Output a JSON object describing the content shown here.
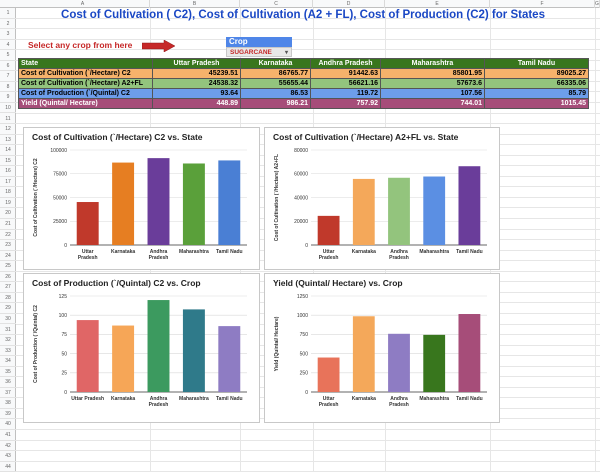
{
  "sheet": {
    "columns": [
      "A",
      "B",
      "C",
      "D",
      "E",
      "F",
      "G"
    ],
    "rows": [
      "1",
      "2",
      "3",
      "4",
      "5",
      "6",
      "7",
      "8",
      "9",
      "10",
      "11",
      "12",
      "13",
      "14",
      "15",
      "16",
      "17",
      "18",
      "19",
      "20",
      "21",
      "22",
      "23",
      "24",
      "25",
      "26",
      "27",
      "28",
      "29",
      "30",
      "31",
      "32",
      "33",
      "34",
      "35",
      "36",
      "37",
      "38",
      "39",
      "40",
      "41",
      "42",
      "43",
      "44"
    ]
  },
  "title": "Cost of Cultivation ( C2), Cost of Cultivation (A2 + FL), Cost of Production (C2) for States",
  "selector": {
    "hint": "Select any crop from here",
    "label": "Crop",
    "value": "SUGARCANE",
    "accent_color": "#c62828"
  },
  "table": {
    "header": [
      "State",
      "Uttar Pradesh",
      "Karnataka",
      "Andhra Pradesh",
      "Maharashtra",
      "Tamil Nadu"
    ],
    "rows": [
      {
        "label": "Cost of Cultivation (`/Hectare) C2",
        "values": [
          "45239.51",
          "86765.77",
          "91442.63",
          "85801.95",
          "89025.27"
        ]
      },
      {
        "label": "Cost of Cultivation (`/Hectare) A2+FL",
        "values": [
          "24538.32",
          "55655.44",
          "56621.16",
          "57673.6",
          "66335.06"
        ]
      },
      {
        "label": "Cost of Production (`/Quintal) C2",
        "values": [
          "93.64",
          "86.53",
          "119.72",
          "107.56",
          "85.79"
        ]
      },
      {
        "label": "Yield (Quintal/ Hectare)",
        "values": [
          "448.89",
          "986.21",
          "757.92",
          "744.01",
          "1015.45"
        ]
      }
    ]
  },
  "chart_data": [
    {
      "type": "bar",
      "title": "Cost of Cultivation (`/Hectare) C2 vs. State",
      "xlabel": "",
      "ylabel": "Cost of Cultivation (`/Hectare) C2",
      "categories": [
        "Uttar Pradesh",
        "Karnataka",
        "Andhra Pradesh",
        "Maharashtra",
        "Tamil Nadu"
      ],
      "values": [
        45239.51,
        86765.77,
        91442.63,
        85801.95,
        89025.27
      ],
      "ylim": [
        0,
        100000
      ],
      "yticks": [
        "0",
        "25000",
        "50000",
        "75000",
        "100000"
      ],
      "grid": true,
      "colors": [
        "#c0392b",
        "#e67e22",
        "#6a3d9a",
        "#5aa03a",
        "#4a7fd4"
      ]
    },
    {
      "type": "bar",
      "title": "Cost of Cultivation (`/Hectare) A2+FL vs. State",
      "xlabel": "",
      "ylabel": "Cost of Cultivation (`/Hectare) A2+FL",
      "categories": [
        "Uttar Pradesh",
        "Karnataka",
        "Andhra Pradesh",
        "Maharashtra",
        "Tamil Nadu"
      ],
      "values": [
        24538.32,
        55655.44,
        56621.16,
        57673.6,
        66335.06
      ],
      "ylim": [
        0,
        80000
      ],
      "yticks": [
        "0",
        "20000",
        "40000",
        "60000",
        "80000"
      ],
      "grid": true,
      "colors": [
        "#c0392b",
        "#f4a85a",
        "#93c47d",
        "#5b8fe3",
        "#6a3d9a"
      ]
    },
    {
      "type": "bar",
      "title": "Cost of Production (`/Quintal) C2 vs. Crop",
      "xlabel": "",
      "ylabel": "Cost of Production (`/Quintal) C2",
      "categories": [
        "Uttar Pradesh",
        "Karnataka",
        "Andhra Pradesh",
        "Maharashtra",
        "Tamil Nadu"
      ],
      "values": [
        93.64,
        86.53,
        119.72,
        107.56,
        85.79
      ],
      "ylim": [
        0,
        125
      ],
      "yticks": [
        "0",
        "25",
        "50",
        "75",
        "100",
        "125"
      ],
      "grid": true,
      "colors": [
        "#e06666",
        "#f6a657",
        "#3c9a5f",
        "#2f7a8a",
        "#8e7cc3"
      ]
    },
    {
      "type": "bar",
      "title": "Yield (Quintal/ Hectare) vs. Crop",
      "xlabel": "",
      "ylabel": "Yield (Quintal/ Hectare)",
      "categories": [
        "Uttar Pradesh",
        "Karnataka",
        "Andhra Pradesh",
        "Maharashtra",
        "Tamil Nadu"
      ],
      "values": [
        448.89,
        986.21,
        757.92,
        744.01,
        1015.45
      ],
      "ylim": [
        0,
        1250
      ],
      "yticks": [
        "0",
        "250",
        "500",
        "750",
        "1000",
        "1250"
      ],
      "grid": true,
      "colors": [
        "#e8735a",
        "#f4a85a",
        "#8e7cc3",
        "#38761d",
        "#a64d79"
      ]
    }
  ]
}
